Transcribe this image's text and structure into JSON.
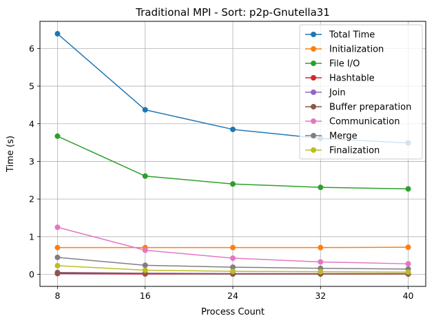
{
  "chart_data": {
    "type": "line",
    "title": "Traditional MPI - Sort: p2p-Gnutella31",
    "xlabel": "Process Count",
    "ylabel": "Time (s)",
    "x": [
      8,
      16,
      24,
      32,
      40
    ],
    "xlim": [
      6.4,
      41.6
    ],
    "ylim": [
      -0.32,
      6.72
    ],
    "xticks": [
      8,
      16,
      24,
      32,
      40
    ],
    "yticks": [
      0,
      1,
      2,
      3,
      4,
      5,
      6
    ],
    "grid": true,
    "legend_position": "top-right",
    "series": [
      {
        "name": "Total Time",
        "color": "#1f77b4",
        "values": [
          6.39,
          4.37,
          3.85,
          3.61,
          3.49
        ]
      },
      {
        "name": "Initialization",
        "color": "#ff7f0e",
        "values": [
          0.71,
          0.71,
          0.71,
          0.71,
          0.72
        ]
      },
      {
        "name": "File I/O",
        "color": "#2ca02c",
        "values": [
          3.67,
          2.61,
          2.4,
          2.31,
          2.27
        ]
      },
      {
        "name": "Hashtable",
        "color": "#d62728",
        "values": [
          0.02,
          0.01,
          0.01,
          0.01,
          0.01
        ]
      },
      {
        "name": "Join",
        "color": "#9467bd",
        "values": [
          0.05,
          0.03,
          0.02,
          0.02,
          0.02
        ]
      },
      {
        "name": "Buffer preparation",
        "color": "#8c564b",
        "values": [
          0.04,
          0.02,
          0.01,
          0.01,
          0.01
        ]
      },
      {
        "name": "Communication",
        "color": "#e377c2",
        "values": [
          1.25,
          0.64,
          0.43,
          0.33,
          0.28
        ]
      },
      {
        "name": "Merge",
        "color": "#7f7f7f",
        "values": [
          0.45,
          0.24,
          0.19,
          0.16,
          0.14
        ]
      },
      {
        "name": "Finalization",
        "color": "#bcbd22",
        "values": [
          0.23,
          0.11,
          0.08,
          0.07,
          0.06
        ]
      }
    ]
  }
}
